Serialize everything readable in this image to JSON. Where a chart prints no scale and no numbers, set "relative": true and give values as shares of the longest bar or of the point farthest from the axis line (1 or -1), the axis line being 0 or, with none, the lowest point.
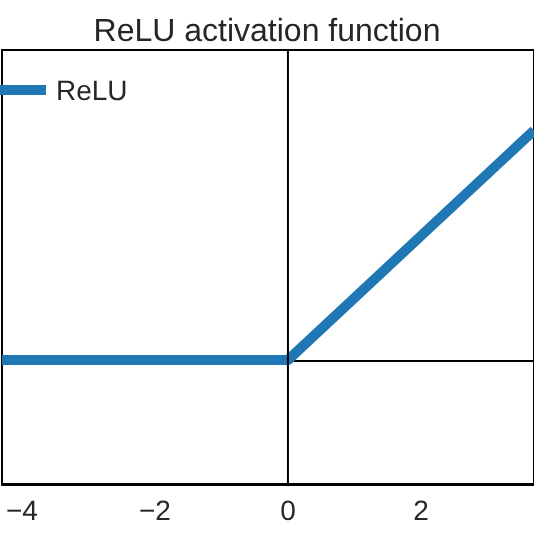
{
  "chart_data": {
    "type": "line",
    "title": "ReLU activation function",
    "relative": true,
    "x": [
      -4.3,
      0,
      3.7
    ],
    "series": [
      {
        "name": "ReLU",
        "color": "#1f77b4",
        "values": [
          0,
          0,
          1
        ]
      }
    ],
    "xlim": [
      -4.3,
      3.7
    ],
    "xticks": [
      -4,
      -2,
      0,
      2
    ],
    "tick_labels": "x",
    "grid": false,
    "legend": "top left",
    "marker": "none",
    "line_style": "solid",
    "ref_lines": [
      {
        "axis": "x",
        "value": 0,
        "color": "#000000"
      }
    ]
  }
}
